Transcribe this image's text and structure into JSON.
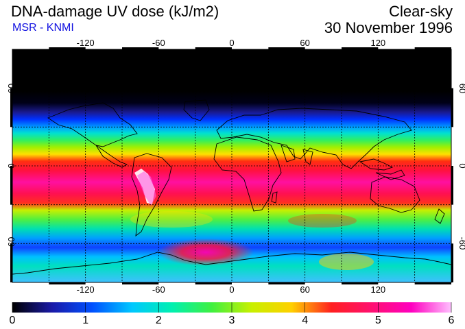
{
  "title": "DNA-damage UV dose (kJ/m2)",
  "subtitle": "MSR - KNMI",
  "condition": "Clear-sky",
  "date": "30 November 1996",
  "map": {
    "lon_ticks": [
      "-120",
      "-60",
      "0",
      "60",
      "120"
    ],
    "lat_ticks": [
      "60",
      "0",
      "-60"
    ],
    "lat_ticks_right": [
      "60",
      "0",
      "-60"
    ],
    "grid_lons": [
      -150,
      -120,
      -90,
      -60,
      -30,
      0,
      30,
      60,
      90,
      120,
      150
    ],
    "grid_lats": [
      60,
      30,
      0,
      -30,
      -60
    ],
    "lon_range": [
      -180,
      180
    ],
    "lat_range": [
      -90,
      90
    ],
    "grid": true
  },
  "colorbar": {
    "labels": [
      "0",
      "1",
      "2",
      "3",
      "4",
      "5",
      "6"
    ],
    "range": [
      0,
      6
    ],
    "colors": [
      "#000000",
      "#1a1aa8",
      "#0050ff",
      "#00c8ff",
      "#00f0b0",
      "#40f040",
      "#c8f000",
      "#ffd000",
      "#ff2020",
      "#ff1070",
      "#ff00c0",
      "#ffc0ff"
    ]
  },
  "colors": {
    "subtitle": "#1010e0"
  }
}
